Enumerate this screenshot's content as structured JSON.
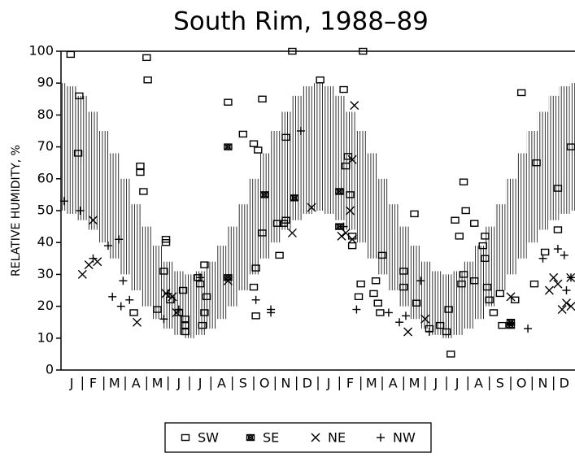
{
  "chart_data": {
    "type": "scatter",
    "title": "South Rim,  1988–89",
    "ylabel": "RELATIVE HUMIDITY,   %",
    "categories": [
      "J",
      "F",
      "M",
      "A",
      "M",
      "J",
      "J",
      "A",
      "S",
      "O",
      "N",
      "D",
      "J",
      "F",
      "M",
      "A",
      "M",
      "J",
      "J",
      "A",
      "S",
      "O",
      "N",
      "D"
    ],
    "xlim": [
      0,
      24
    ],
    "ylim": [
      0,
      100
    ],
    "yticks": [
      0,
      10,
      20,
      30,
      40,
      50,
      60,
      70,
      80,
      90,
      100
    ],
    "color": "#000000",
    "legend": "bottom",
    "band": {
      "x": [
        0,
        0.5,
        1,
        1.5,
        2,
        2.5,
        3,
        3.5,
        4,
        4.5,
        5,
        5.5,
        6,
        6.5,
        7,
        7.5,
        8,
        8.5,
        9,
        9.5,
        10,
        10.5,
        11,
        11.5,
        12,
        12.5,
        13,
        13.5,
        14,
        14.5,
        15,
        15.5,
        16,
        16.5,
        17,
        17.5,
        18,
        18.5,
        19,
        19.5,
        20,
        20.5,
        21,
        21.5,
        22,
        22.5,
        23,
        23.5,
        24
      ],
      "low": [
        50,
        49,
        47,
        44,
        40,
        35,
        30,
        25,
        20,
        16,
        13,
        11,
        10,
        11,
        13,
        16,
        20,
        25,
        30,
        35,
        40,
        44,
        47,
        49,
        50,
        49,
        47,
        44,
        40,
        35,
        30,
        25,
        20,
        16,
        13,
        11,
        10,
        11,
        13,
        16,
        20,
        25,
        30,
        35,
        40,
        44,
        47,
        49,
        50
      ],
      "high": [
        90,
        89,
        86,
        81,
        75,
        68,
        60,
        52,
        45,
        39,
        34,
        31,
        30,
        31,
        34,
        39,
        45,
        52,
        60,
        68,
        75,
        81,
        86,
        89,
        90,
        89,
        86,
        81,
        75,
        68,
        60,
        52,
        45,
        39,
        34,
        31,
        30,
        31,
        34,
        39,
        45,
        52,
        60,
        68,
        75,
        81,
        86,
        89,
        90
      ]
    },
    "series": [
      {
        "name": "SW",
        "marker": "square",
        "x": [
          0.45,
          0.85,
          0.8,
          3.7,
          3.7,
          3.85,
          4.0,
          4.05,
          3.4,
          4.5,
          4.9,
          4.9,
          4.8,
          5.1,
          5.5,
          5.7,
          5.8,
          5.8,
          5.8,
          6.4,
          6.5,
          6.7,
          6.8,
          6.7,
          6.6,
          7.8,
          8.5,
          9.0,
          9.2,
          9.1,
          9.0,
          9.1,
          9.4,
          9.4,
          10.1,
          10.4,
          10.5,
          10.2,
          10.5,
          10.8,
          12.1,
          13.2,
          13.3,
          13.4,
          13.6,
          13.5,
          13.6,
          14.1,
          14.0,
          13.9,
          14.7,
          14.6,
          14.8,
          15.0,
          14.9,
          16.0,
          16.0,
          16.5,
          16.6,
          17.2,
          17.7,
          18.1,
          18.0,
          18.2,
          18.4,
          18.6,
          18.7,
          18.8,
          18.9,
          18.8,
          19.3,
          19.3,
          19.8,
          19.7,
          19.8,
          19.9,
          20.0,
          20.2,
          20.5,
          20.6,
          21.5,
          21.2,
          22.2,
          22.1,
          22.6,
          23.2,
          23.2,
          24.0
        ],
        "values": [
          99,
          86,
          68,
          64,
          62,
          56,
          98,
          91,
          18,
          19,
          41,
          40,
          31,
          22,
          18,
          25,
          16,
          14,
          12,
          29,
          27,
          33,
          23,
          18,
          14,
          84,
          74,
          71,
          69,
          32,
          26,
          17,
          85,
          43,
          46,
          46,
          47,
          36,
          73,
          100,
          91,
          88,
          64,
          67,
          42,
          55,
          39,
          100,
          27,
          23,
          28,
          24,
          21,
          36,
          18,
          31,
          26,
          49,
          21,
          13,
          14,
          19,
          12,
          5,
          47,
          42,
          27,
          30,
          50,
          59,
          46,
          28,
          42,
          39,
          35,
          26,
          22,
          18,
          24,
          14,
          87,
          22,
          65,
          27,
          37,
          57,
          44,
          70
        ]
      },
      {
        "name": "SE",
        "marker": "square-x",
        "x": [
          7.8,
          7.8,
          9.5,
          10.9,
          13.0,
          13.0,
          21.0,
          21.0
        ],
        "values": [
          70,
          29,
          55,
          54,
          56,
          45,
          14,
          15
        ]
      },
      {
        "name": "NE",
        "marker": "x",
        "x": [
          1.0,
          1.3,
          1.5,
          1.7,
          3.55,
          4.9,
          5.2,
          5.4,
          7.8,
          10.8,
          11.7,
          13.1,
          13.3,
          13.6,
          13.5,
          13.7,
          13.6,
          16.2,
          17.0,
          21.0,
          22.8,
          23.0,
          23.2,
          23.4,
          23.6,
          23.8,
          24.0
        ],
        "values": [
          30,
          33,
          47,
          34,
          15,
          24,
          23,
          18,
          28,
          43,
          51,
          42,
          43,
          66,
          50,
          83,
          41,
          12,
          16,
          23,
          25,
          29,
          27,
          19,
          21,
          29,
          20
        ]
      },
      {
        "name": "NW",
        "marker": "plus",
        "x": [
          0.15,
          0.9,
          1.5,
          2.2,
          2.4,
          2.7,
          2.9,
          3.2,
          2.8,
          4.8,
          5.0,
          5.5,
          6.5,
          9.1,
          9.8,
          9.8,
          11.2,
          13.2,
          13.8,
          15.3,
          15.8,
          16.1,
          16.8,
          17.2,
          21.8,
          22.5,
          23.2,
          23.5,
          23.6,
          23.9
        ],
        "values": [
          53,
          50,
          35,
          39,
          23,
          41,
          28,
          22,
          20,
          16,
          24,
          19,
          29,
          22,
          18,
          19,
          75,
          45,
          19,
          18,
          15,
          17,
          28,
          12,
          13,
          35,
          38,
          36,
          25,
          29
        ]
      }
    ]
  }
}
